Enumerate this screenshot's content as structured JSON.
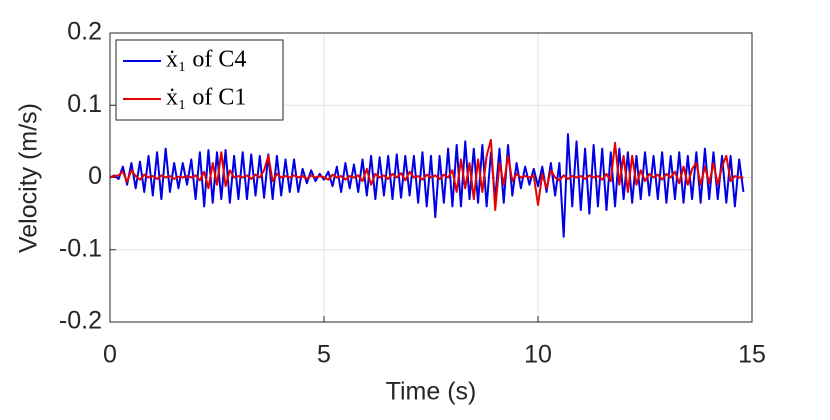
{
  "chart_data": {
    "type": "line",
    "xlabel": "Time (s)",
    "ylabel": "Velocity (m/s)",
    "xlim": [
      0,
      15
    ],
    "xticks": [
      0,
      5,
      10,
      15
    ],
    "ylim": [
      -0.2,
      0.2
    ],
    "yticks": [
      -0.2,
      -0.1,
      0,
      0.1,
      0.2
    ],
    "grid": true,
    "legend": "upper left",
    "x": [
      0,
      0.1,
      0.2,
      0.3,
      0.4,
      0.5,
      0.6,
      0.7,
      0.8,
      0.9,
      1,
      1.1,
      1.2,
      1.3,
      1.4,
      1.5,
      1.6,
      1.7,
      1.8,
      1.9,
      2,
      2.1,
      2.2,
      2.3,
      2.4,
      2.5,
      2.6,
      2.7,
      2.8,
      2.9,
      3,
      3.1,
      3.2,
      3.3,
      3.4,
      3.5,
      3.6,
      3.7,
      3.8,
      3.9,
      4,
      4.1,
      4.2,
      4.3,
      4.4,
      4.5,
      4.6,
      4.7,
      4.8,
      4.9,
      5,
      5.1,
      5.2,
      5.3,
      5.4,
      5.5,
      5.6,
      5.7,
      5.8,
      5.9,
      6,
      6.1,
      6.2,
      6.3,
      6.4,
      6.5,
      6.6,
      6.7,
      6.8,
      6.9,
      7,
      7.1,
      7.2,
      7.3,
      7.4,
      7.5,
      7.6,
      7.7,
      7.8,
      7.9,
      8,
      8.1,
      8.2,
      8.3,
      8.4,
      8.5,
      8.6,
      8.7,
      8.8,
      8.9,
      9,
      9.1,
      9.2,
      9.3,
      9.4,
      9.5,
      9.6,
      9.7,
      9.8,
      9.9,
      10,
      10.1,
      10.2,
      10.3,
      10.4,
      10.5,
      10.6,
      10.7,
      10.8,
      10.9,
      11,
      11.1,
      11.2,
      11.3,
      11.4,
      11.5,
      11.6,
      11.7,
      11.8,
      11.9,
      12,
      12.1,
      12.2,
      12.3,
      12.4,
      12.5,
      12.6,
      12.7,
      12.8,
      12.9,
      13,
      13.1,
      13.2,
      13.3,
      13.4,
      13.5,
      13.6,
      13.7,
      13.8,
      13.9,
      14,
      14.1,
      14.2,
      14.3,
      14.4,
      14.5,
      14.6,
      14.7,
      14.8
    ],
    "series": [
      {
        "name": "ẋ₁ of C4",
        "color": "#0000e6",
        "values": [
          0,
          0.003,
          -0.002,
          0.015,
          -0.01,
          0.02,
          -0.015,
          0.022,
          -0.02,
          0.03,
          -0.025,
          0.035,
          -0.03,
          0.04,
          -0.02,
          0.02,
          -0.015,
          0.02,
          -0.01,
          0.025,
          -0.03,
          0.035,
          -0.04,
          0.038,
          -0.035,
          0.035,
          -0.03,
          0.038,
          -0.035,
          0.03,
          -0.03,
          0.035,
          -0.03,
          0.032,
          -0.025,
          0.03,
          -0.028,
          0.032,
          -0.03,
          0.03,
          -0.025,
          0.025,
          -0.02,
          0.025,
          -0.02,
          0.012,
          -0.008,
          0.01,
          -0.005,
          0.005,
          -0.003,
          0.008,
          -0.012,
          0.015,
          -0.02,
          0.02,
          -0.015,
          0.018,
          -0.02,
          0.025,
          -0.025,
          0.03,
          -0.03,
          0.028,
          -0.025,
          0.03,
          -0.03,
          0.032,
          -0.028,
          0.03,
          -0.025,
          0.03,
          -0.035,
          0.035,
          -0.04,
          0.03,
          -0.055,
          0.03,
          -0.035,
          0.04,
          -0.04,
          0.045,
          -0.04,
          0.05,
          -0.03,
          0.04,
          -0.035,
          0.045,
          -0.04,
          0.035,
          -0.03,
          0.04,
          -0.035,
          0.045,
          -0.025,
          0.02,
          -0.015,
          0.015,
          -0.01,
          0.012,
          -0.012,
          0.015,
          -0.02,
          0.02,
          -0.025,
          0.02,
          -0.082,
          0.06,
          -0.04,
          0.05,
          -0.045,
          0.04,
          -0.05,
          0.045,
          -0.04,
          0.04,
          -0.045,
          0.035,
          -0.04,
          0.04,
          -0.03,
          0.035,
          -0.035,
          0.03,
          -0.03,
          0.035,
          -0.025,
          0.03,
          -0.03,
          0.035,
          -0.035,
          0.03,
          -0.03,
          0.035,
          -0.035,
          0.03,
          -0.03,
          0.035,
          -0.035,
          0.04,
          -0.03,
          0.035,
          -0.03,
          0.03,
          -0.035,
          0.03,
          -0.04,
          0.025,
          -0.02
        ]
      },
      {
        "name": "ẋ₁ of C1",
        "color": "#e60000",
        "values": [
          0,
          0.002,
          0.003,
          0.008,
          -0.006,
          0.01,
          0.002,
          -0.003,
          0.004,
          0,
          0.002,
          -0.002,
          0.003,
          0,
          0.002,
          -0.002,
          0.001,
          0,
          0.002,
          0,
          0.003,
          -0.004,
          0.008,
          -0.015,
          0.02,
          -0.01,
          0.035,
          -0.012,
          0.01,
          0,
          0.002,
          0,
          0.003,
          -0.002,
          0.004,
          0,
          0.01,
          0.03,
          -0.005,
          0.005,
          0,
          0.002,
          0,
          0.003,
          0,
          0.002,
          -0.002,
          0.003,
          0,
          0.002,
          0,
          -0.003,
          0.004,
          0,
          0.002,
          -0.003,
          0.002,
          0,
          0.003,
          -0.005,
          0.012,
          -0.01,
          0.005,
          0,
          0.003,
          -0.002,
          0.005,
          0,
          0.006,
          -0.004,
          0.008,
          0,
          0.002,
          -0.003,
          0.004,
          0,
          0.003,
          -0.002,
          0.004,
          0,
          0.01,
          -0.02,
          0.025,
          -0.015,
          0.02,
          -0.03,
          0.025,
          -0.02,
          0.03,
          0.052,
          -0.045,
          0.02,
          -0.01,
          0.03,
          -0.005,
          0.005,
          0,
          0.002,
          0,
          0.003,
          -0.038,
          0.005,
          -0.015,
          0.01,
          0,
          -0.004,
          0.003,
          -0.002,
          0.002,
          0,
          0.002,
          -0.002,
          0.003,
          0,
          0.002,
          -0.003,
          0.005,
          -0.005,
          0.048,
          -0.01,
          0.03,
          -0.02,
          0.03,
          -0.01,
          0.01,
          -0.005,
          0.005,
          0,
          0.004,
          -0.003,
          0.005,
          0,
          0.008,
          -0.008,
          0.015,
          -0.01,
          0.012,
          0.02,
          -0.01,
          0.015,
          -0.008,
          0.02,
          -0.01,
          0.015,
          0.03,
          -0.005,
          0.002,
          0,
          0
        ]
      }
    ]
  }
}
